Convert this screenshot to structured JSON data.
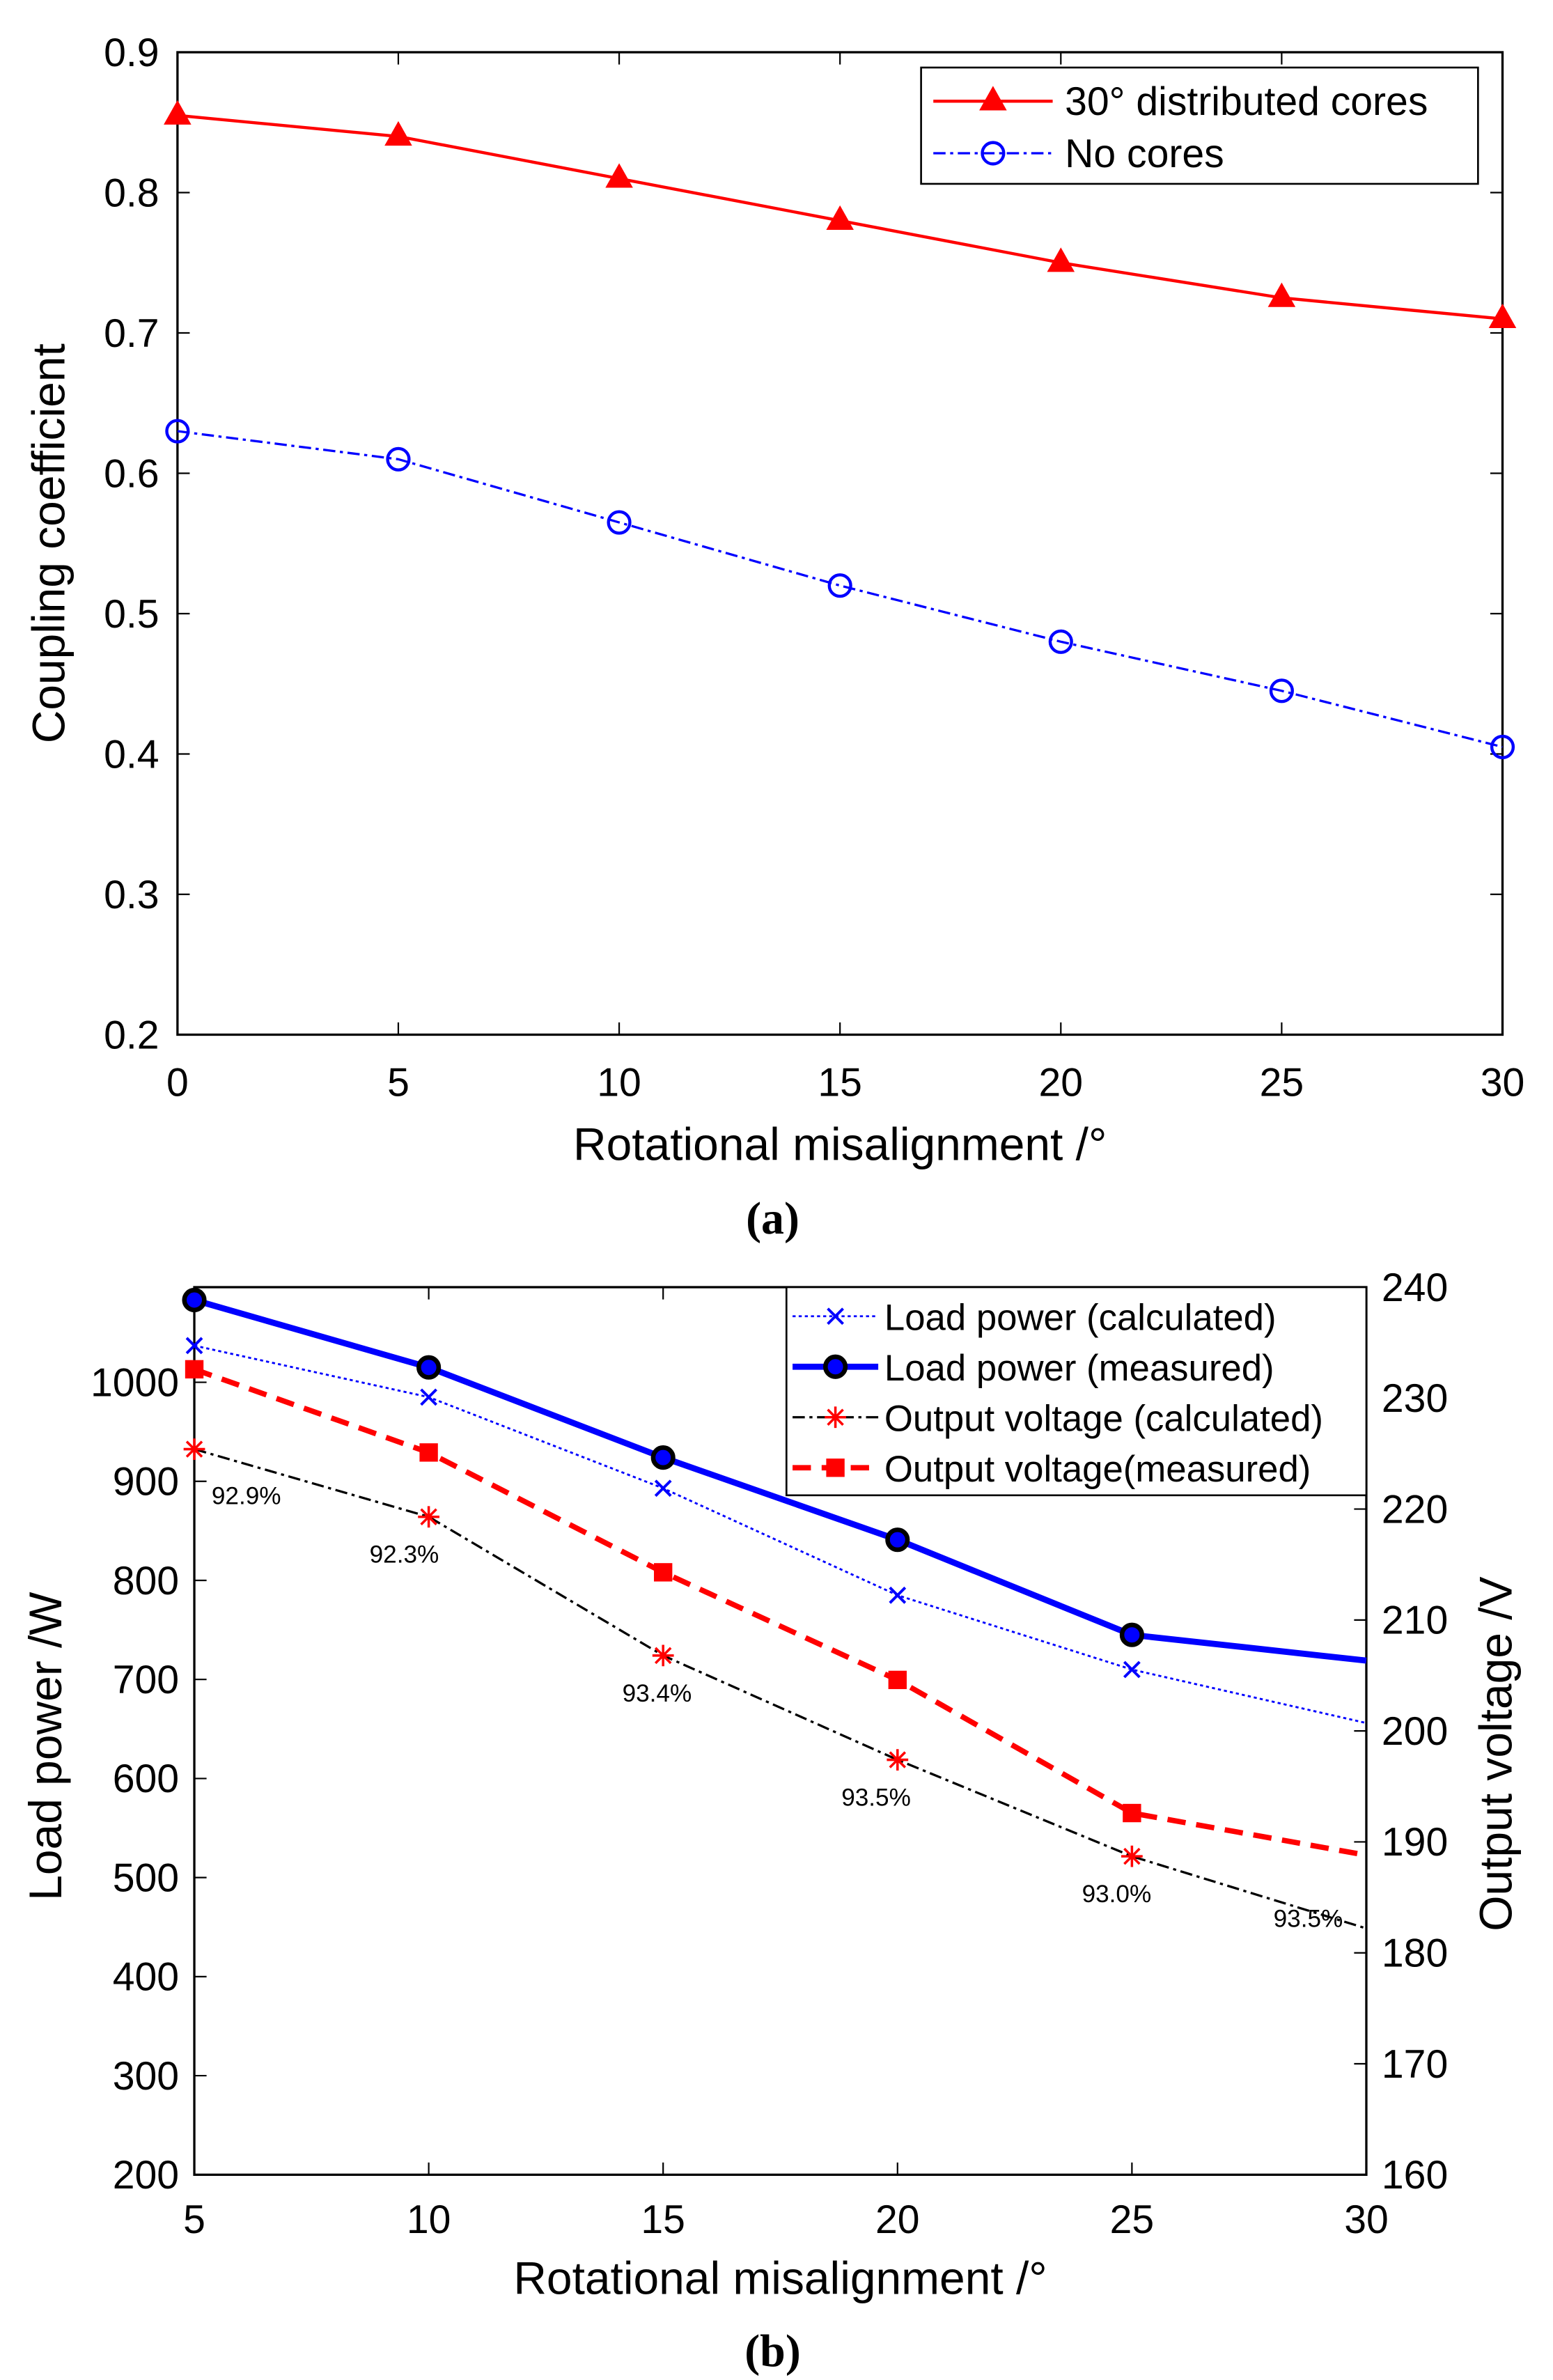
{
  "chart_data": [
    {
      "type": "line",
      "caption": "(a)",
      "xlabel": "Rotational misalignment /°",
      "ylabel": "Coupling coefficient",
      "xlim": [
        0,
        30
      ],
      "ylim": [
        0.2,
        0.9
      ],
      "xticks": [
        "0",
        "5",
        "10",
        "15",
        "20",
        "25",
        "30"
      ],
      "yticks": [
        "0.2",
        "0.3",
        "0.4",
        "0.5",
        "0.6",
        "0.7",
        "0.8",
        "0.9"
      ],
      "legend_position": "top-right",
      "x": [
        0,
        5,
        10,
        15,
        20,
        25,
        30
      ],
      "series": [
        {
          "name": "30° distributed cores",
          "values": [
            0.855,
            0.84,
            0.81,
            0.78,
            0.75,
            0.725,
            0.71
          ],
          "color": "#ff0000",
          "marker": "triangle",
          "style": "solid"
        },
        {
          "name": "No cores",
          "values": [
            0.63,
            0.61,
            0.565,
            0.52,
            0.48,
            0.445,
            0.405
          ],
          "color": "#0000ff",
          "marker": "circle",
          "style": "dashdot"
        }
      ]
    },
    {
      "type": "line",
      "caption": "(b)",
      "xlabel": "Rotational misalignment /°",
      "ylabel": "Load power /W",
      "ylabel_right": "Output voltage /V",
      "xlim": [
        5,
        30
      ],
      "ylim": [
        200,
        1096
      ],
      "ylim_right": [
        160,
        240
      ],
      "xticks": [
        "5",
        "10",
        "15",
        "20",
        "25",
        "30"
      ],
      "yticks": [
        "200",
        "300",
        "400",
        "500",
        "600",
        "700",
        "800",
        "900",
        "1000"
      ],
      "yticks_right": [
        "160",
        "170",
        "180",
        "190",
        "200",
        "210",
        "220",
        "230",
        "240"
      ],
      "legend_position": "top-right",
      "x": [
        5,
        10,
        15,
        20,
        25,
        30
      ],
      "series": [
        {
          "name": "Load power (calculated)",
          "axis": "left",
          "values": [
            1037,
            985,
            893,
            785,
            710,
            656
          ],
          "color": "#0000ff",
          "marker": "x",
          "style": "dotted"
        },
        {
          "name": "Load power (measured)",
          "axis": "left",
          "values": [
            1083,
            1015,
            924,
            841,
            745,
            719
          ],
          "color": "#0000ff",
          "marker": "filled-circle",
          "style": "solid-thick"
        },
        {
          "name": "Output voltage (calculated)",
          "axis": "right",
          "values": [
            225.4,
            219.3,
            206.8,
            197.4,
            188.7,
            182.2
          ],
          "color": "#ff0000",
          "line_color": "#000000",
          "marker": "asterisk",
          "style": "dashdot"
        },
        {
          "name": "Output voltage(measured)",
          "axis": "right",
          "values": [
            232.6,
            225.1,
            214.3,
            204.6,
            192.6,
            188.8
          ],
          "color": "#ff0000",
          "marker": "square",
          "style": "dashed-thick"
        }
      ],
      "annotations": [
        "92.9%",
        "92.3%",
        "93.4%",
        "93.5%",
        "93.0%",
        "93.5%"
      ]
    }
  ]
}
